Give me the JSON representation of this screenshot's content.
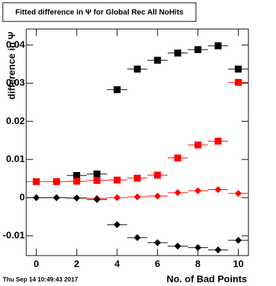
{
  "chart_data": {
    "type": "scatter",
    "title": "Fitted difference in  Ψ  for Global Rec All NoHits",
    "x_label": "No. of Bad Points",
    "y_label": "difference in Ψ",
    "timestamp": "Thu Sep 14 10:49:43 2017",
    "xlim": [
      -0.5,
      10.5
    ],
    "xticks": [
      0,
      2,
      4,
      6,
      8,
      10
    ],
    "ylim": [
      -0.0152,
      0.0442
    ],
    "yticks": [
      -0.01,
      0,
      0.01,
      0.02,
      0.03,
      0.04
    ],
    "xerr": 0.5,
    "series": [
      {
        "color": "#000000",
        "marker": "square",
        "x": [
          2,
          3,
          4,
          5,
          6,
          7,
          8,
          9,
          10
        ],
        "values": [
          0.0058,
          0.0062,
          0.0283,
          0.0337,
          0.036,
          0.0379,
          0.0388,
          0.0398,
          0.0337
        ]
      },
      {
        "color": "#ff0000",
        "marker": "square",
        "x": [
          0,
          1,
          2,
          3,
          4,
          5,
          6,
          7,
          8,
          9,
          10
        ],
        "values": [
          0.0042,
          0.0042,
          0.0043,
          0.0045,
          0.0046,
          0.0051,
          0.0059,
          0.0104,
          0.0138,
          0.0148,
          0.0302
        ]
      },
      {
        "color": "#ff0000",
        "marker": "diamond",
        "x": [
          0,
          1,
          2,
          3,
          4,
          5,
          6,
          7,
          8,
          9,
          10
        ],
        "values": [
          0,
          0,
          -0.0001,
          -0.0002,
          0,
          0.0002,
          0.0004,
          0.0013,
          0.0018,
          0.0021,
          0.0011
        ]
      },
      {
        "color": "#000000",
        "marker": "diamond",
        "x": [
          0,
          1,
          2,
          3,
          4,
          5,
          6,
          7,
          8,
          9,
          10
        ],
        "values": [
          0,
          0,
          -0.0001,
          -0.0005,
          -0.0071,
          -0.0105,
          -0.0118,
          -0.0127,
          -0.0131,
          -0.0137,
          -0.0112
        ]
      }
    ]
  }
}
